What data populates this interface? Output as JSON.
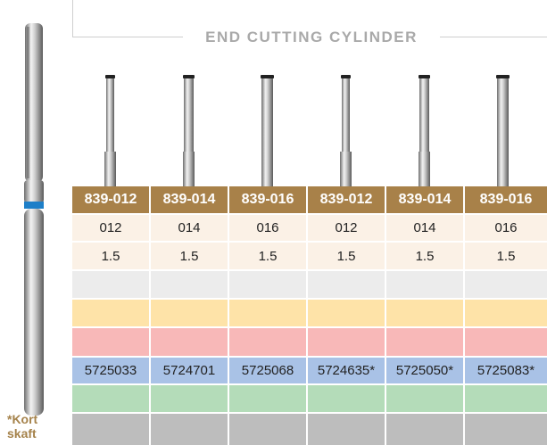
{
  "title": "END CUTTING CYLINDER",
  "footnote": "*Kort skaft",
  "columns": [
    {
      "code": "839-012",
      "size": "012",
      "length": "1.5",
      "ref": "5725033"
    },
    {
      "code": "839-014",
      "size": "014",
      "length": "1.5",
      "ref": "5724701"
    },
    {
      "code": "839-016",
      "size": "016",
      "length": "1.5",
      "ref": "5725068"
    },
    {
      "code": "839-012",
      "size": "012",
      "length": "1.5",
      "ref": "5724635*"
    },
    {
      "code": "839-014",
      "size": "014",
      "length": "1.5",
      "ref": "5725050*"
    },
    {
      "code": "839-016",
      "size": "016",
      "length": "1.5",
      "ref": "5725083*"
    }
  ],
  "colors": {
    "header_bg": "#a88149",
    "cream": "#fbf1e6",
    "gray_light": "#ececec",
    "yellow": "#fee3a8",
    "red": "#f8b8b8",
    "blue": "#a9c2e6",
    "green": "#b4dcb9",
    "gray_dark": "#bdbdbd",
    "ring_blue": "#1e7fc8",
    "footnote": "#a5824a"
  }
}
